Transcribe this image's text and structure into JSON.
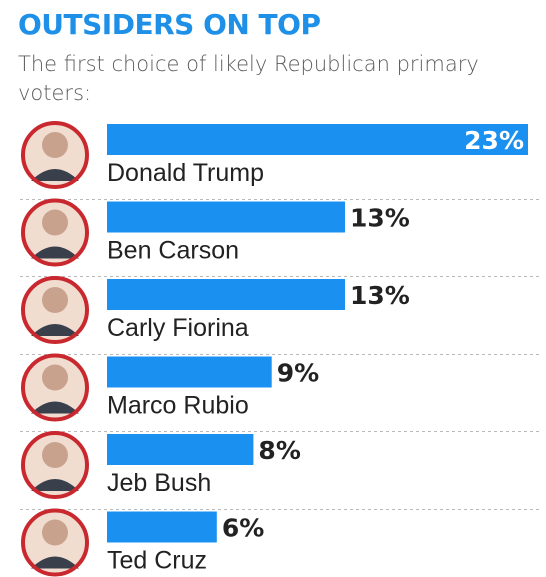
{
  "header": {
    "title": "OUTSIDERS ON TOP",
    "subtitle": "The first choice of likely Republican primary voters:"
  },
  "colors": {
    "title": "#1e90e8",
    "bar": "#1a90f0",
    "portrait_ring": "#c8282e",
    "divider": "#b9b9b9",
    "text": "#222222"
  },
  "chart_data": {
    "type": "bar",
    "orientation": "horizontal",
    "title": "OUTSIDERS ON TOP",
    "subtitle": "The first choice of likely Republican primary voters:",
    "categories": [
      "Donald Trump",
      "Ben Carson",
      "Carly Fiorina",
      "Marco Rubio",
      "Jeb Bush",
      "Ted Cruz"
    ],
    "values": [
      23,
      13,
      13,
      9,
      8,
      6
    ],
    "value_labels": [
      "23%",
      "13%",
      "13%",
      "9%",
      "8%",
      "6%"
    ],
    "xlim": [
      0,
      23
    ],
    "grid": false,
    "legend": "none"
  }
}
